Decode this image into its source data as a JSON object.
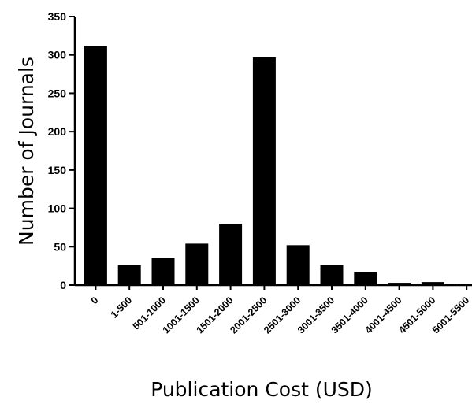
{
  "chart_data": {
    "type": "bar",
    "categories": [
      "0",
      "1-500",
      "501-1000",
      "1001-1500",
      "1501-2000",
      "2001-2500",
      "2501-3000",
      "3001-3500",
      "3501-4000",
      "4001-4500",
      "4501-5000",
      "5001-5500"
    ],
    "values": [
      312,
      26,
      35,
      54,
      80,
      297,
      52,
      26,
      17,
      3,
      4,
      2
    ],
    "xlabel": "Publication Cost (USD)",
    "ylabel": "Number of Journals",
    "ylim": [
      0,
      350
    ],
    "yticks": [
      "0",
      "50",
      "100",
      "150",
      "200",
      "250",
      "300",
      "350"
    ],
    "grid": false,
    "bar_color": "#000000"
  }
}
